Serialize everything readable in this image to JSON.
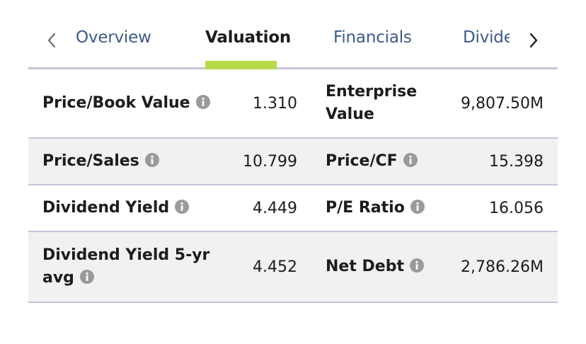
{
  "tabs": [
    {
      "label": "Overview"
    },
    {
      "label": "Valuation"
    },
    {
      "label": "Financials"
    },
    {
      "label": "Divide"
    }
  ],
  "active_tab": "Valuation",
  "colors": {
    "active_underline": "#b4db4a",
    "tab_text": "#3c5a8c",
    "divider": "#c3c6dc",
    "shaded_row": "#f1f1f2",
    "info_icon": "#9a9a9a"
  },
  "icons": {
    "left": "chevron-left-icon",
    "right": "chevron-right-icon",
    "info": "info-icon"
  },
  "rows": [
    {
      "left_label": "Price/Book Value",
      "left_value": "1.310",
      "right_label_line1": "Enterprise",
      "right_label_line2": "Value",
      "right_value": "9,807.50M"
    },
    {
      "left_label": "Price/Sales",
      "left_value": "10.799",
      "right_label": "Price/CF",
      "right_value": "15.398"
    },
    {
      "left_label": "Dividend Yield",
      "left_value": "4.449",
      "right_label": "P/E Ratio",
      "right_value": "16.056"
    },
    {
      "left_label_line1": "Dividend Yield 5-yr",
      "left_label_line2": "avg",
      "left_value": "4.452",
      "right_label": "Net Debt",
      "right_value": "2,786.26M"
    }
  ]
}
